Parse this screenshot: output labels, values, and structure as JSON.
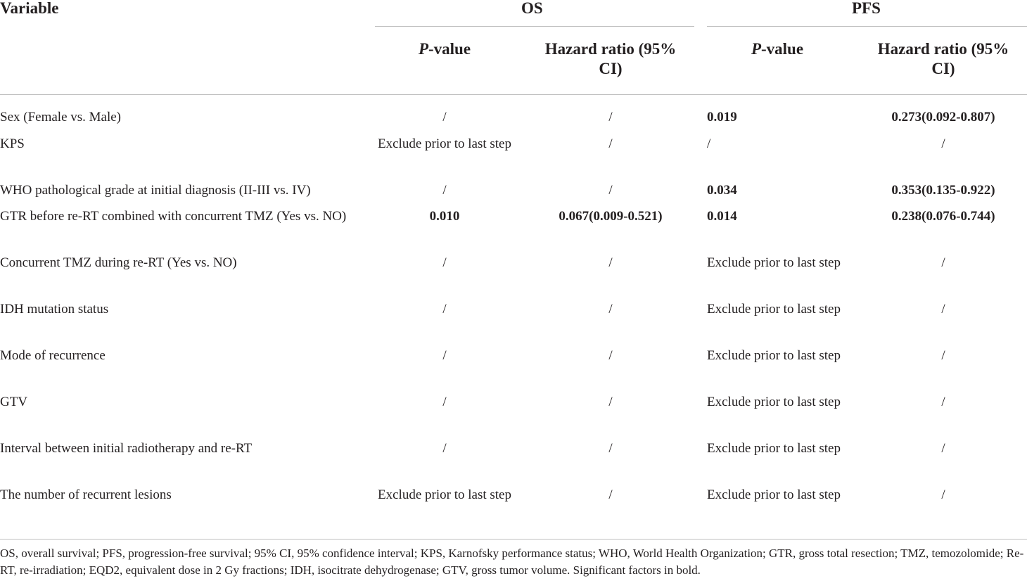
{
  "header": {
    "variable": "Variable",
    "os": "OS",
    "pfs": "PFS",
    "pvalue_italic": "P",
    "pvalue_rest": "-value",
    "hr_line1": "Hazard ratio (95%",
    "hr_line2": "CI)"
  },
  "rows": [
    {
      "variable": "Sex (Female vs. Male)",
      "os_p": "/",
      "os_hr": "/",
      "pfs_p": "0.019",
      "pfs_hr": "0.273(0.092-0.807)"
    },
    {
      "variable": "KPS",
      "os_p": "Exclude prior to last step",
      "os_hr": "/",
      "pfs_p": "/",
      "pfs_hr": "/"
    },
    {
      "variable": "WHO pathological grade at initial diagnosis (II-III vs. IV)",
      "os_p": "/",
      "os_hr": "/",
      "pfs_p": "0.034",
      "pfs_hr": "0.353(0.135-0.922)"
    },
    {
      "variable": "GTR before re-RT combined with concurrent TMZ (Yes vs. NO)",
      "os_p": "0.010",
      "os_hr": "0.067(0.009-0.521)",
      "pfs_p": "0.014",
      "pfs_hr": "0.238(0.076-0.744)"
    },
    {
      "variable": "Concurrent TMZ during re-RT (Yes vs. NO)",
      "os_p": "/",
      "os_hr": "/",
      "pfs_p": "Exclude prior to last step",
      "pfs_hr": "/"
    },
    {
      "variable": "IDH mutation status",
      "os_p": "/",
      "os_hr": "/",
      "pfs_p": "Exclude prior to last step",
      "pfs_hr": "/"
    },
    {
      "variable": "Mode of recurrence",
      "os_p": "/",
      "os_hr": "/",
      "pfs_p": "Exclude prior to last step",
      "pfs_hr": "/"
    },
    {
      "variable": "GTV",
      "os_p": "/",
      "os_hr": "/",
      "pfs_p": "Exclude prior to last step",
      "pfs_hr": "/"
    },
    {
      "variable": "Interval between initial radiotherapy and re-RT",
      "os_p": "/",
      "os_hr": "/",
      "pfs_p": "Exclude prior to last step",
      "pfs_hr": "/"
    },
    {
      "variable": "The number of recurrent lesions",
      "os_p": "Exclude prior to last step",
      "os_hr": "/",
      "pfs_p": "Exclude prior to last step",
      "pfs_hr": "/"
    }
  ],
  "footnote": "OS, overall survival; PFS, progression-free survival; 95% CI, 95% confidence interval; KPS, Karnofsky performance status; WHO, World Health Organization; GTR, gross total resection; TMZ, temozolomide; Re-RT, re-irradiation; EQD2, equivalent dose in 2 Gy fractions; IDH, isocitrate dehydrogenase; GTV, gross tumor volume. Significant factors in bold."
}
